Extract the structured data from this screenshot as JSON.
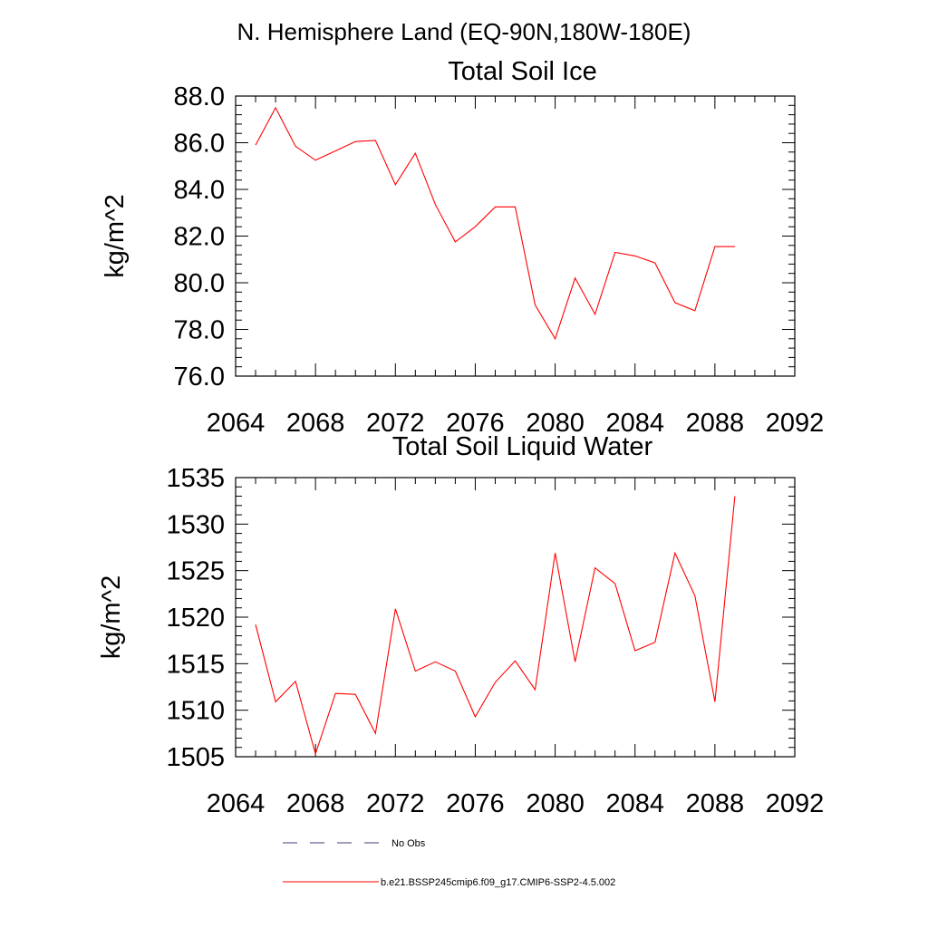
{
  "figure_title": "N. Hemisphere Land (EQ-90N,180W-180E)",
  "chart_data": [
    {
      "type": "line",
      "title": "Total Soil Ice",
      "xlabel": "",
      "ylabel": "kg/m^2",
      "xlim": [
        2064,
        2092
      ],
      "ylim": [
        76.0,
        88.0
      ],
      "x_ticks": [
        2064,
        2068,
        2072,
        2076,
        2080,
        2084,
        2088,
        2092
      ],
      "y_ticks": [
        76.0,
        78.0,
        80.0,
        82.0,
        84.0,
        86.0,
        88.0
      ],
      "x_tick_labels": [
        "2064",
        "2068",
        "2072",
        "2076",
        "2080",
        "2084",
        "2088",
        "2092"
      ],
      "y_tick_labels": [
        "76.0",
        "78.0",
        "80.0",
        "82.0",
        "84.0",
        "86.0",
        "88.0"
      ],
      "grid": false,
      "series": [
        {
          "name": "b.e21.BSSP245cmip6.f09_g17.CMIP6-SSP2-4.5.002",
          "color": "#ff0000",
          "x": [
            2065,
            2066,
            2067,
            2068,
            2069,
            2070,
            2071,
            2072,
            2073,
            2074,
            2075,
            2076,
            2077,
            2078,
            2079,
            2080,
            2081,
            2082,
            2083,
            2084,
            2085,
            2086,
            2087,
            2088,
            2089
          ],
          "y": [
            85.9,
            87.5,
            85.85,
            85.25,
            85.65,
            86.05,
            86.1,
            84.2,
            85.55,
            83.35,
            81.75,
            82.4,
            83.25,
            83.25,
            79.05,
            77.6,
            80.2,
            78.65,
            81.3,
            81.15,
            80.85,
            79.15,
            78.8,
            81.55,
            81.55
          ]
        }
      ]
    },
    {
      "type": "line",
      "title": "Total Soil Liquid Water",
      "xlabel": "",
      "ylabel": "kg/m^2",
      "xlim": [
        2064,
        2092
      ],
      "ylim": [
        1505,
        1535
      ],
      "x_ticks": [
        2064,
        2068,
        2072,
        2076,
        2080,
        2084,
        2088,
        2092
      ],
      "y_ticks": [
        1505,
        1510,
        1515,
        1520,
        1525,
        1530,
        1535
      ],
      "x_tick_labels": [
        "2064",
        "2068",
        "2072",
        "2076",
        "2080",
        "2084",
        "2088",
        "2092"
      ],
      "y_tick_labels": [
        "1505",
        "1510",
        "1515",
        "1520",
        "1525",
        "1530",
        "1535"
      ],
      "grid": false,
      "series": [
        {
          "name": "b.e21.BSSP245cmip6.f09_g17.CMIP6-SSP2-4.5.002",
          "color": "#ff0000",
          "x": [
            2065,
            2066,
            2067,
            2068,
            2069,
            2070,
            2071,
            2072,
            2073,
            2074,
            2075,
            2076,
            2077,
            2078,
            2079,
            2080,
            2081,
            2082,
            2083,
            2084,
            2085,
            2086,
            2087,
            2088,
            2089
          ],
          "y": [
            1519.2,
            1510.9,
            1513.1,
            1505.3,
            1511.8,
            1511.7,
            1507.5,
            1520.9,
            1514.2,
            1515.2,
            1514.2,
            1509.3,
            1513.0,
            1515.3,
            1512.2,
            1526.9,
            1515.2,
            1525.3,
            1523.6,
            1516.4,
            1517.3,
            1526.9,
            1522.3,
            1510.9,
            1533.0
          ]
        }
      ]
    }
  ],
  "legend": {
    "placement": "bottom",
    "entries": [
      {
        "label": "No Obs",
        "style": "dashed",
        "color": "#3c3c78"
      },
      {
        "label": "b.e21.BSSP245cmip6.f09_g17.CMIP6-SSP2-4.5.002",
        "style": "solid",
        "color": "#ff0000"
      }
    ]
  }
}
